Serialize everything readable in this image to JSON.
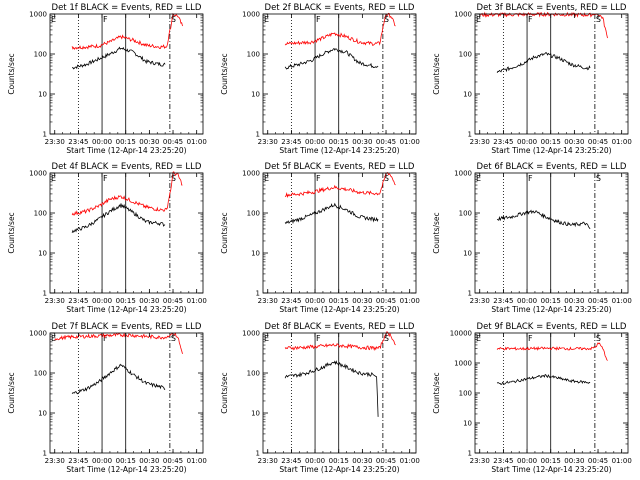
{
  "colors": {
    "events": "#000000",
    "lld": "#ff0000",
    "background": "#ffffff"
  },
  "chart_data": [
    {
      "type": "line",
      "title": "Det 1f BLACK = Events, RED = LLD",
      "xlabel": "Start Time (12-Apr-14 23:25:20)",
      "ylabel": "Counts/sec",
      "yscale": "log",
      "ylim": [
        1,
        1000
      ],
      "y_tick_labels": [
        "1",
        "10",
        "100",
        "1000"
      ],
      "x_tick_labels": [
        "23:30",
        "23:45",
        "00:00",
        "00:15",
        "00:30",
        "00:45",
        "01:00"
      ],
      "markers": [
        "E",
        "F",
        "S"
      ],
      "series": [
        {
          "name": "Events",
          "color": "#000000",
          "x": [
            "23:41",
            "23:50",
            "23:58",
            "00:05",
            "00:12",
            "00:20",
            "00:28",
            "00:37",
            "00:40"
          ],
          "values": [
            45,
            55,
            75,
            100,
            140,
            110,
            65,
            55,
            55
          ]
        },
        {
          "name": "LLD",
          "color": "#ff0000",
          "x": [
            "23:41",
            "23:50",
            "23:58",
            "00:05",
            "00:12",
            "00:20",
            "00:28",
            "00:37",
            "00:41",
            "00:44",
            "00:45",
            "00:48",
            "00:51"
          ],
          "values": [
            145,
            150,
            160,
            200,
            270,
            220,
            165,
            150,
            155,
            600,
            1000,
            900,
            500
          ]
        }
      ]
    },
    {
      "type": "line",
      "title": "Det 2f BLACK = Events, RED = LLD",
      "xlabel": "Start Time (12-Apr-14 23:25:20)",
      "ylabel": "Counts/sec",
      "yscale": "log",
      "ylim": [
        1,
        1000
      ],
      "y_tick_labels": [
        "1",
        "10",
        "100",
        "1000"
      ],
      "x_tick_labels": [
        "23:30",
        "23:45",
        "00:00",
        "00:15",
        "00:30",
        "00:45",
        "01:00"
      ],
      "markers": [
        "E",
        "F",
        "S"
      ],
      "series": [
        {
          "name": "Events",
          "color": "#000000",
          "x": [
            "23:41",
            "23:50",
            "23:58",
            "00:05",
            "00:12",
            "00:20",
            "00:28",
            "00:37",
            "00:40"
          ],
          "values": [
            45,
            55,
            70,
            100,
            135,
            110,
            60,
            50,
            50
          ]
        },
        {
          "name": "LLD",
          "color": "#ff0000",
          "x": [
            "23:41",
            "23:50",
            "23:58",
            "00:05",
            "00:12",
            "00:20",
            "00:28",
            "00:37",
            "00:41",
            "00:44",
            "00:45",
            "00:48",
            "00:51"
          ],
          "values": [
            180,
            190,
            200,
            250,
            330,
            270,
            200,
            180,
            185,
            700,
            1000,
            900,
            500
          ]
        }
      ]
    },
    {
      "type": "line",
      "title": "Det 3f BLACK = Events, RED = LLD",
      "xlabel": "Start Time (12-Apr-14 23:25:20)",
      "ylabel": "Counts/sec",
      "yscale": "log",
      "ylim": [
        1,
        1000
      ],
      "y_tick_labels": [
        "1",
        "10",
        "100",
        "1000"
      ],
      "x_tick_labels": [
        "23:30",
        "23:45",
        "00:00",
        "00:15",
        "00:30",
        "00:45",
        "01:00"
      ],
      "markers": [
        "E",
        "F",
        "S"
      ],
      "series": [
        {
          "name": "Events",
          "color": "#000000",
          "x": [
            "23:41",
            "23:50",
            "23:58",
            "00:05",
            "00:12",
            "00:20",
            "00:28",
            "00:37",
            "00:40"
          ],
          "values": [
            35,
            45,
            60,
            85,
            100,
            80,
            55,
            45,
            45
          ]
        },
        {
          "name": "LLD",
          "color": "#ff0000",
          "x": [
            "23:30",
            "23:41",
            "23:58",
            "00:15",
            "00:28",
            "00:37",
            "00:42",
            "00:44",
            "00:45",
            "00:48",
            "00:51"
          ],
          "values": [
            950,
            960,
            970,
            990,
            960,
            950,
            955,
            990,
            1000,
            800,
            250
          ]
        }
      ]
    },
    {
      "type": "line",
      "title": "Det 4f BLACK = Events, RED = LLD",
      "xlabel": "Start Time (12-Apr-14 23:25:20)",
      "ylabel": "Counts/sec",
      "yscale": "log",
      "ylim": [
        1,
        1000
      ],
      "y_tick_labels": [
        "1",
        "10",
        "100",
        "1000"
      ],
      "x_tick_labels": [
        "23:30",
        "23:45",
        "00:00",
        "00:15",
        "00:30",
        "00:45",
        "01:00"
      ],
      "markers": [
        "E",
        "F",
        "S"
      ],
      "series": [
        {
          "name": "Events",
          "color": "#000000",
          "x": [
            "23:41",
            "23:50",
            "23:58",
            "00:05",
            "00:12",
            "00:20",
            "00:28",
            "00:37",
            "00:40"
          ],
          "values": [
            35,
            45,
            70,
            110,
            160,
            100,
            60,
            55,
            50
          ]
        },
        {
          "name": "LLD",
          "color": "#ff0000",
          "x": [
            "23:41",
            "23:50",
            "23:58",
            "00:05",
            "00:12",
            "00:20",
            "00:28",
            "00:37",
            "00:41",
            "00:44",
            "00:45",
            "00:48",
            "00:51"
          ],
          "values": [
            95,
            110,
            150,
            220,
            260,
            190,
            140,
            120,
            120,
            500,
            1000,
            900,
            500
          ]
        }
      ]
    },
    {
      "type": "line",
      "title": "Det 5f BLACK = Events, RED = LLD",
      "xlabel": "Start Time (12-Apr-14 23:25:20)",
      "ylabel": "Counts/sec",
      "yscale": "log",
      "ylim": [
        1,
        1000
      ],
      "y_tick_labels": [
        "1",
        "10",
        "100",
        "1000"
      ],
      "x_tick_labels": [
        "23:30",
        "23:45",
        "00:00",
        "00:15",
        "00:30",
        "00:45",
        "01:00"
      ],
      "markers": [
        "E",
        "F",
        "S"
      ],
      "series": [
        {
          "name": "Events",
          "color": "#000000",
          "x": [
            "23:41",
            "23:50",
            "23:58",
            "00:05",
            "00:12",
            "00:20",
            "00:28",
            "00:37",
            "00:40"
          ],
          "values": [
            55,
            70,
            90,
            120,
            160,
            120,
            80,
            70,
            70
          ]
        },
        {
          "name": "LLD",
          "color": "#ff0000",
          "x": [
            "23:41",
            "23:50",
            "23:58",
            "00:05",
            "00:12",
            "00:20",
            "00:28",
            "00:37",
            "00:41",
            "00:44",
            "00:45",
            "00:48",
            "00:51"
          ],
          "values": [
            280,
            300,
            330,
            380,
            440,
            390,
            330,
            310,
            310,
            700,
            1000,
            900,
            500
          ]
        }
      ]
    },
    {
      "type": "line",
      "title": "Det 6f BLACK = Events, RED = LLD",
      "xlabel": "Start Time (12-Apr-14 23:25:20)",
      "ylabel": "Counts/sec",
      "yscale": "log",
      "ylim": [
        1,
        1000
      ],
      "y_tick_labels": [
        "1",
        "10",
        "100",
        "1000"
      ],
      "x_tick_labels": [
        "23:30",
        "23:45",
        "00:00",
        "00:15",
        "00:30",
        "00:45",
        "01:00"
      ],
      "markers": [
        "E",
        "F",
        "S"
      ],
      "series": [
        {
          "name": "Events",
          "color": "#000000",
          "x": [
            "23:41",
            "23:50",
            "23:58",
            "00:05",
            "00:12",
            "00:20",
            "00:28",
            "00:37",
            "00:40"
          ],
          "values": [
            70,
            80,
            100,
            110,
            80,
            60,
            50,
            55,
            40
          ]
        }
      ]
    },
    {
      "type": "line",
      "title": "Det 7f BLACK = Events, RED = LLD",
      "xlabel": "Start Time (12-Apr-14 23:25:20)",
      "ylabel": "Counts/sec",
      "yscale": "log",
      "ylim": [
        1,
        1000
      ],
      "y_tick_labels": [
        "1",
        "10",
        "100",
        "1000"
      ],
      "x_tick_labels": [
        "23:30",
        "23:45",
        "00:00",
        "00:15",
        "00:30",
        "00:45",
        "01:00"
      ],
      "markers": [
        "E",
        "F",
        "S"
      ],
      "series": [
        {
          "name": "Events",
          "color": "#000000",
          "x": [
            "23:41",
            "23:50",
            "23:58",
            "00:05",
            "00:12",
            "00:20",
            "00:28",
            "00:37",
            "00:40"
          ],
          "values": [
            30,
            40,
            60,
            100,
            160,
            90,
            55,
            45,
            40
          ]
        },
        {
          "name": "LLD",
          "color": "#ff0000",
          "x": [
            "23:30",
            "23:41",
            "23:58",
            "00:15",
            "00:28",
            "00:37",
            "00:42",
            "00:44",
            "00:45",
            "00:48",
            "00:51"
          ],
          "values": [
            720,
            800,
            850,
            900,
            820,
            780,
            800,
            950,
            1000,
            800,
            300
          ]
        }
      ]
    },
    {
      "type": "line",
      "title": "Det 8f BLACK = Events, RED = LLD",
      "xlabel": "Start Time (12-Apr-14 23:25:20)",
      "ylabel": "Counts/sec",
      "yscale": "log",
      "ylim": [
        1,
        1000
      ],
      "y_tick_labels": [
        "1",
        "10",
        "100",
        "1000"
      ],
      "x_tick_labels": [
        "23:30",
        "23:45",
        "00:00",
        "00:15",
        "00:30",
        "00:45",
        "01:00"
      ],
      "markers": [
        "E",
        "F",
        "S"
      ],
      "series": [
        {
          "name": "Events",
          "color": "#000000",
          "x": [
            "23:41",
            "23:50",
            "23:58",
            "00:05",
            "00:12",
            "00:20",
            "00:28",
            "00:37",
            "00:39",
            "00:40"
          ],
          "values": [
            80,
            90,
            110,
            140,
            190,
            140,
            100,
            90,
            80,
            8
          ]
        },
        {
          "name": "LLD",
          "color": "#ff0000",
          "x": [
            "23:41",
            "23:50",
            "23:58",
            "00:05",
            "00:12",
            "00:20",
            "00:28",
            "00:37",
            "00:41",
            "00:44",
            "00:45",
            "00:48",
            "00:51"
          ],
          "values": [
            420,
            430,
            450,
            470,
            500,
            470,
            440,
            420,
            420,
            800,
            1000,
            900,
            500
          ]
        }
      ]
    },
    {
      "type": "line",
      "title": "Det 9f BLACK = Events, RED = LLD",
      "xlabel": "Start Time (12-Apr-14 23:25:20)",
      "ylabel": "Counts/sec",
      "yscale": "log",
      "ylim": [
        1,
        10000
      ],
      "y_tick_labels": [
        "1",
        "10",
        "100",
        "1000",
        "10000"
      ],
      "x_tick_labels": [
        "23:30",
        "23:45",
        "00:00",
        "00:15",
        "00:30",
        "00:45",
        "01:00"
      ],
      "markers": [
        "E",
        "F",
        "S"
      ],
      "series": [
        {
          "name": "Events",
          "color": "#000000",
          "x": [
            "23:41",
            "23:50",
            "23:58",
            "00:05",
            "00:12",
            "00:20",
            "00:28",
            "00:37",
            "00:40"
          ],
          "values": [
            200,
            230,
            280,
            330,
            380,
            310,
            250,
            230,
            220
          ]
        },
        {
          "name": "LLD",
          "color": "#ff0000",
          "x": [
            "23:41",
            "23:58",
            "00:15",
            "00:28",
            "00:37",
            "00:41",
            "00:44",
            "00:45",
            "00:48",
            "00:51"
          ],
          "values": [
            3000,
            3000,
            3100,
            3000,
            3000,
            3050,
            3500,
            5000,
            3000,
            1200
          ]
        }
      ]
    }
  ]
}
